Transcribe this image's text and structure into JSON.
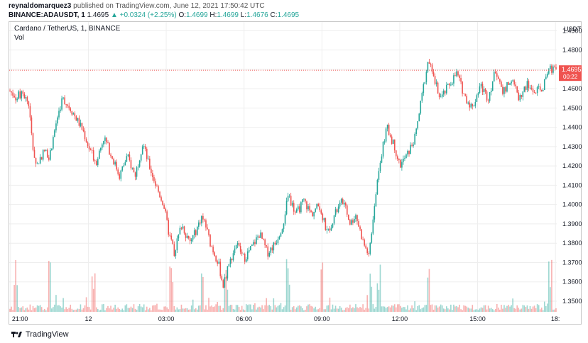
{
  "header": {
    "author": "reynaldomarquez3",
    "published": "published on TradingView.com, June 12, 2021 17:50:42 UTC",
    "symbol": "BINANCE:ADAUSDT, 1",
    "last": "1.4695",
    "change": "▲ +0.0324 (+2.25%)",
    "o_label": "O:",
    "o": "1.4699",
    "h_label": "H:",
    "h": "1.4699",
    "l_label": "L:",
    "l": "1.4676",
    "c_label": "C:",
    "c": "1.4695"
  },
  "chart_title": "Cardano / TetherUS, 1, BINANCE",
  "volume_label": "Vol",
  "currency": "USDT",
  "price_tag": {
    "price": "1.4695",
    "countdown": "00:22"
  },
  "footer_brand": "TradingView",
  "colors": {
    "up": "#26a69a",
    "down": "#ef5350",
    "grid": "#eeeeee",
    "tag": "#ef5350"
  },
  "chart_data": {
    "type": "candlestick",
    "title": "Cardano / TetherUS, 1, BINANCE",
    "y_ticks": [
      "1.4900",
      "1.4800",
      "1.4700",
      "1.4600",
      "1.4500",
      "1.4400",
      "1.4300",
      "1.4200",
      "1.4100",
      "1.4000",
      "1.3900",
      "1.3800",
      "1.3700",
      "1.3600",
      "1.3500"
    ],
    "ylim": [
      1.3445,
      1.4945
    ],
    "x_ticks": [
      "21:00",
      "12",
      "03:00",
      "06:00",
      "09:00",
      "12:00",
      "15:00",
      "18:"
    ],
    "x_tick_hours": [
      21,
      24,
      27,
      30,
      33,
      36,
      39,
      42
    ],
    "xlim_hours": [
      20.95,
      42.05
    ],
    "close_path": [
      [
        20.95,
        1.459
      ],
      [
        21.2,
        1.456
      ],
      [
        21.5,
        1.457
      ],
      [
        21.7,
        1.452
      ],
      [
        21.85,
        1.43
      ],
      [
        22.0,
        1.42
      ],
      [
        22.3,
        1.428
      ],
      [
        22.5,
        1.425
      ],
      [
        22.8,
        1.445
      ],
      [
        23.0,
        1.455
      ],
      [
        23.3,
        1.45
      ],
      [
        23.6,
        1.443
      ],
      [
        23.8,
        1.438
      ],
      [
        24.0,
        1.43
      ],
      [
        24.3,
        1.422
      ],
      [
        24.6,
        1.435
      ],
      [
        24.9,
        1.425
      ],
      [
        25.2,
        1.415
      ],
      [
        25.5,
        1.425
      ],
      [
        25.8,
        1.415
      ],
      [
        26.1,
        1.432
      ],
      [
        26.3,
        1.422
      ],
      [
        26.6,
        1.41
      ],
      [
        26.9,
        1.4
      ],
      [
        27.1,
        1.385
      ],
      [
        27.3,
        1.375
      ],
      [
        27.6,
        1.39
      ],
      [
        27.9,
        1.38
      ],
      [
        28.1,
        1.385
      ],
      [
        28.4,
        1.395
      ],
      [
        28.7,
        1.38
      ],
      [
        29.0,
        1.37
      ],
      [
        29.2,
        1.358
      ],
      [
        29.4,
        1.368
      ],
      [
        29.7,
        1.38
      ],
      [
        30.0,
        1.372
      ],
      [
        30.3,
        1.378
      ],
      [
        30.6,
        1.385
      ],
      [
        30.9,
        1.375
      ],
      [
        31.2,
        1.38
      ],
      [
        31.5,
        1.39
      ],
      [
        31.7,
        1.405
      ],
      [
        32.0,
        1.395
      ],
      [
        32.3,
        1.402
      ],
      [
        32.6,
        1.395
      ],
      [
        32.9,
        1.4
      ],
      [
        33.2,
        1.385
      ],
      [
        33.5,
        1.395
      ],
      [
        33.8,
        1.402
      ],
      [
        34.1,
        1.39
      ],
      [
        34.3,
        1.395
      ],
      [
        34.6,
        1.38
      ],
      [
        34.8,
        1.374
      ],
      [
        35.0,
        1.395
      ],
      [
        35.2,
        1.42
      ],
      [
        35.5,
        1.44
      ],
      [
        35.8,
        1.43
      ],
      [
        36.0,
        1.42
      ],
      [
        36.3,
        1.426
      ],
      [
        36.6,
        1.435
      ],
      [
        36.9,
        1.46
      ],
      [
        37.1,
        1.475
      ],
      [
        37.3,
        1.465
      ],
      [
        37.6,
        1.455
      ],
      [
        37.9,
        1.462
      ],
      [
        38.2,
        1.468
      ],
      [
        38.5,
        1.456
      ],
      [
        38.8,
        1.45
      ],
      [
        39.1,
        1.462
      ],
      [
        39.4,
        1.455
      ],
      [
        39.7,
        1.47
      ],
      [
        40.0,
        1.458
      ],
      [
        40.3,
        1.465
      ],
      [
        40.6,
        1.455
      ],
      [
        40.9,
        1.462
      ],
      [
        41.2,
        1.458
      ],
      [
        41.5,
        1.46
      ],
      [
        41.8,
        1.47
      ],
      [
        42.05,
        1.4695
      ]
    ],
    "volume_spikes_hours": [
      21.2,
      22.5,
      24.2,
      27.2,
      28.4,
      29.3,
      31.7,
      33.0,
      34.9,
      35.2,
      37.1,
      41.8
    ]
  }
}
